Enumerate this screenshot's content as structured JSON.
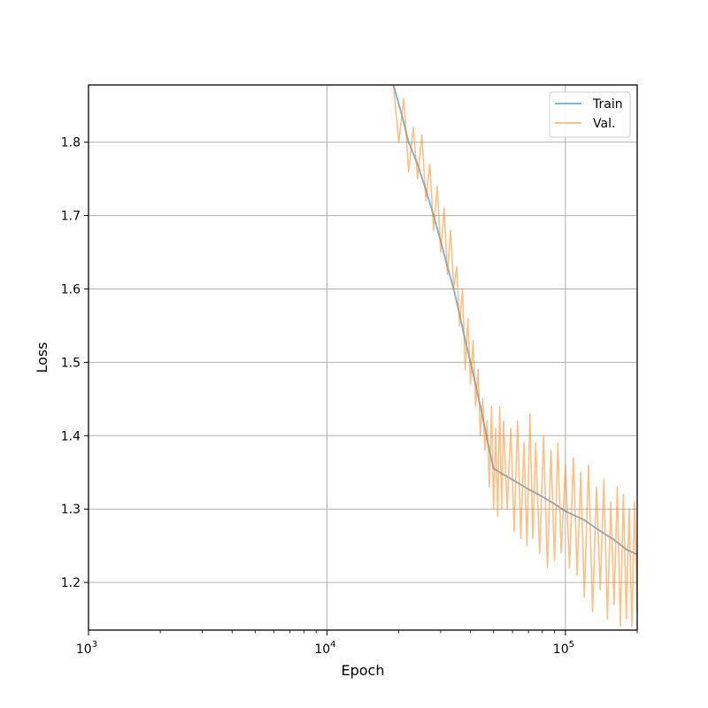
{
  "chart_data": {
    "type": "line",
    "xlabel": "Epoch",
    "ylabel": "Loss",
    "x_scale": "log",
    "xlim": [
      1000,
      200000
    ],
    "ylim": [
      1.135,
      1.878
    ],
    "grid": true,
    "legend_position": "top-right",
    "x_ticks": [
      {
        "value": 1000,
        "base": "10",
        "exp": "3"
      },
      {
        "value": 10000,
        "base": "10",
        "exp": "4"
      },
      {
        "value": 100000,
        "base": "10",
        "exp": "5"
      }
    ],
    "y_ticks": [
      {
        "value": 1.2,
        "label": "1.2"
      },
      {
        "value": 1.3,
        "label": "1.3"
      },
      {
        "value": 1.4,
        "label": "1.4"
      },
      {
        "value": 1.5,
        "label": "1.5"
      },
      {
        "value": 1.6,
        "label": "1.6"
      },
      {
        "value": 1.7,
        "label": "1.7"
      },
      {
        "value": 1.8,
        "label": "1.8"
      }
    ],
    "series": [
      {
        "name": "Train",
        "color": "#1f77b4",
        "x": [
          19000,
          20500,
          22000,
          24000,
          26000,
          28000,
          30000,
          32000,
          34000,
          36000,
          38000,
          40000,
          42000,
          44000,
          46000,
          48000,
          50000,
          52000,
          55000,
          60000,
          70000,
          80000,
          90000,
          100000,
          120000,
          140000,
          160000,
          180000,
          200000
        ],
        "y": [
          1.878,
          1.84,
          1.8,
          1.77,
          1.735,
          1.7,
          1.665,
          1.63,
          1.6,
          1.565,
          1.53,
          1.5,
          1.47,
          1.44,
          1.41,
          1.38,
          1.355,
          1.352,
          1.347,
          1.34,
          1.327,
          1.317,
          1.307,
          1.297,
          1.285,
          1.27,
          1.258,
          1.245,
          1.238
        ]
      },
      {
        "name": "Val.",
        "color": "#ff7f0e",
        "x": [
          19000,
          20000,
          21000,
          22000,
          23000,
          24000,
          25000,
          26000,
          27000,
          28000,
          29000,
          30000,
          31000,
          32000,
          33000,
          34000,
          35000,
          36000,
          37000,
          38000,
          39000,
          40000,
          41000,
          42000,
          43000,
          44000,
          45000,
          46000,
          47000,
          48000,
          49000,
          50000,
          51000,
          52000,
          53000,
          54000,
          55000,
          57000,
          59000,
          61000,
          63000,
          65000,
          67000,
          69000,
          71000,
          73000,
          75000,
          78000,
          81000,
          84000,
          87000,
          90000,
          93000,
          96000,
          100000,
          104000,
          108000,
          112000,
          116000,
          120000,
          125000,
          130000,
          135000,
          140000,
          145000,
          150000,
          155000,
          160000,
          165000,
          170000,
          175000,
          180000,
          185000,
          190000,
          195000,
          200000
        ],
        "y": [
          1.878,
          1.8,
          1.86,
          1.76,
          1.82,
          1.75,
          1.81,
          1.72,
          1.77,
          1.68,
          1.74,
          1.65,
          1.71,
          1.62,
          1.68,
          1.6,
          1.63,
          1.55,
          1.6,
          1.49,
          1.56,
          1.47,
          1.53,
          1.44,
          1.49,
          1.4,
          1.45,
          1.38,
          1.42,
          1.33,
          1.44,
          1.3,
          1.41,
          1.29,
          1.44,
          1.3,
          1.42,
          1.3,
          1.41,
          1.27,
          1.42,
          1.26,
          1.39,
          1.25,
          1.43,
          1.26,
          1.39,
          1.24,
          1.4,
          1.22,
          1.38,
          1.23,
          1.39,
          1.24,
          1.36,
          1.22,
          1.37,
          1.21,
          1.35,
          1.18,
          1.36,
          1.16,
          1.33,
          1.19,
          1.34,
          1.15,
          1.31,
          1.17,
          1.33,
          1.14,
          1.32,
          1.15,
          1.3,
          1.14,
          1.31,
          1.16
        ]
      }
    ]
  }
}
